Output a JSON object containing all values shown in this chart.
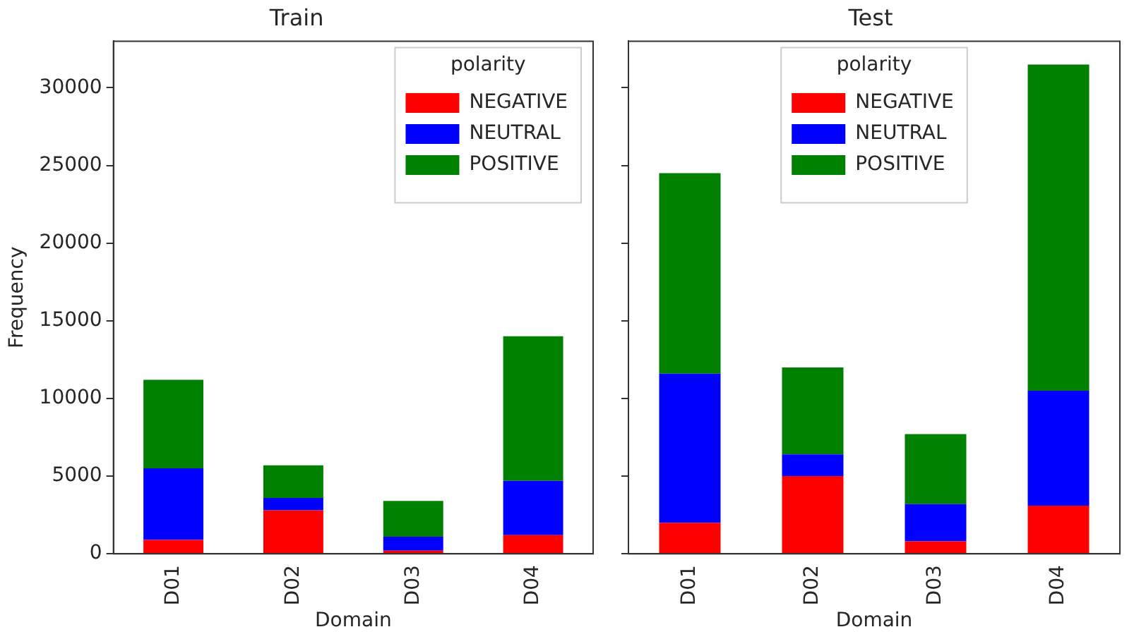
{
  "chart_data": [
    {
      "type": "bar",
      "title": "Train",
      "xlabel": "Domain",
      "ylabel": "Frequency",
      "legend_title": "polarity",
      "categories": [
        "D01",
        "D02",
        "D03",
        "D04"
      ],
      "stacked": true,
      "series": [
        {
          "name": "NEGATIVE",
          "color": "#ff0000",
          "values": [
            900,
            2800,
            200,
            1200
          ]
        },
        {
          "name": "NEUTRAL",
          "color": "#0000ff",
          "values": [
            4600,
            800,
            900,
            3500
          ]
        },
        {
          "name": "POSITIVE",
          "color": "#008000",
          "values": [
            5700,
            2100,
            2300,
            9300
          ]
        }
      ],
      "ylim": [
        0,
        33000
      ],
      "yticks": [
        0,
        5000,
        10000,
        15000,
        20000,
        25000,
        30000
      ],
      "grid": false,
      "legend": "top right"
    },
    {
      "type": "bar",
      "title": "Test",
      "xlabel": "Domain",
      "legend_title": "polarity",
      "categories": [
        "D01",
        "D02",
        "D03",
        "D04"
      ],
      "stacked": true,
      "series": [
        {
          "name": "NEGATIVE",
          "color": "#ff0000",
          "values": [
            2000,
            5000,
            800,
            3100
          ]
        },
        {
          "name": "NEUTRAL",
          "color": "#0000ff",
          "values": [
            9600,
            1400,
            2400,
            7400
          ]
        },
        {
          "name": "POSITIVE",
          "color": "#008000",
          "values": [
            12900,
            5600,
            4500,
            21000
          ]
        }
      ],
      "ylim": [
        0,
        33000
      ],
      "yticks": [
        0,
        5000,
        10000,
        15000,
        20000,
        25000,
        30000
      ],
      "grid": false,
      "legend": "top",
      "tick_labels": "x"
    }
  ]
}
